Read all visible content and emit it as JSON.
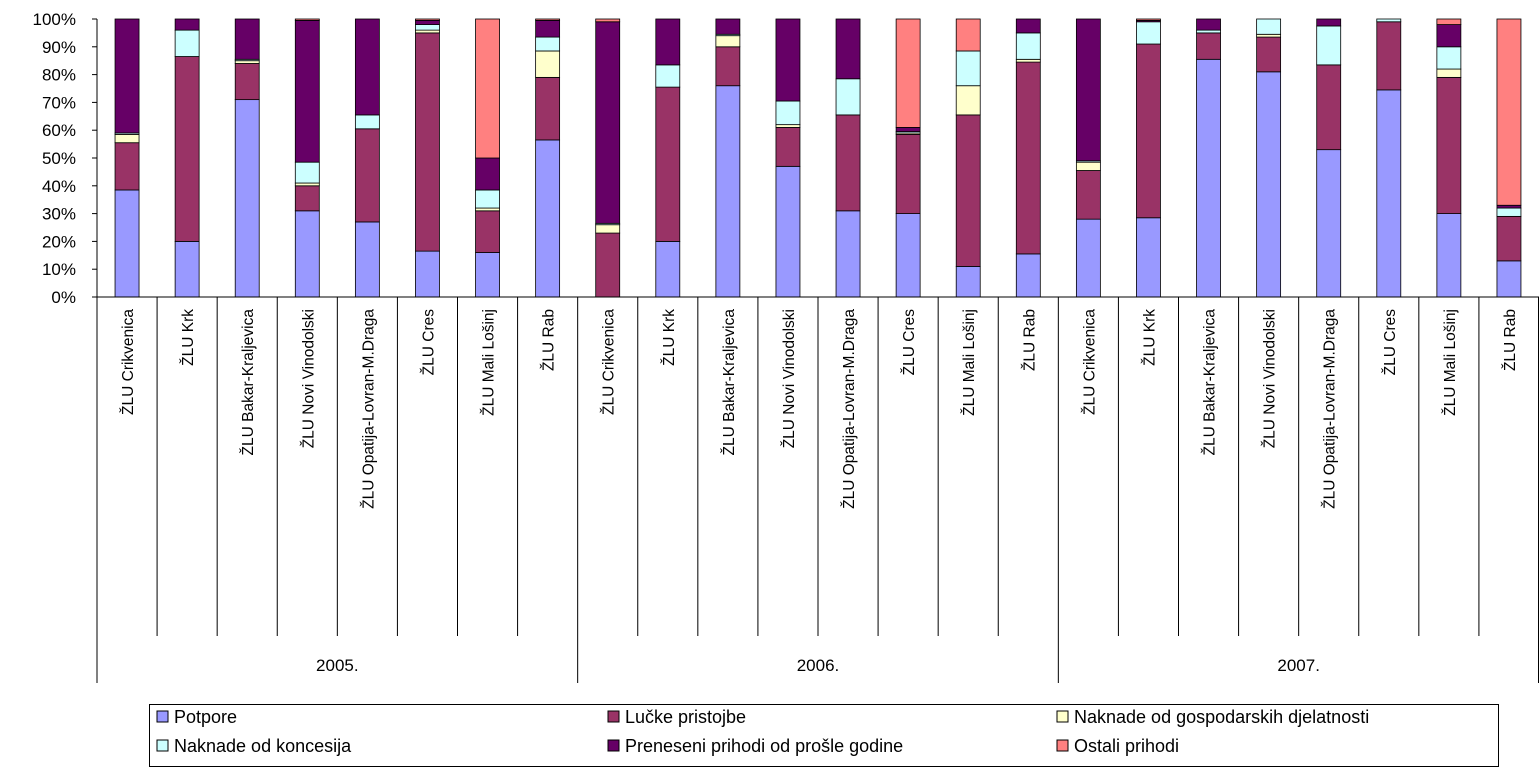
{
  "chart_data": {
    "type": "bar",
    "stacked": true,
    "percent": true,
    "ylim": [
      0,
      100
    ],
    "yticks": [
      "0%",
      "10%",
      "20%",
      "30%",
      "40%",
      "50%",
      "60%",
      "70%",
      "80%",
      "90%",
      "100%"
    ],
    "groups": [
      {
        "label": "2005.",
        "categories": [
          "ŽLU Crikvenica",
          "ŽLU Krk",
          "ŽLU Bakar-Kraljevica",
          "ŽLU Novi Vinodolski",
          "ŽLU Opatija-Lovran-M.Draga",
          "ŽLU Cres",
          "ŽLU Mali Lošinj",
          "ŽLU Rab"
        ]
      },
      {
        "label": "2006.",
        "categories": [
          "ŽLU Crikvenica",
          "ŽLU Krk",
          "ŽLU Bakar-Kraljevica",
          "ŽLU Novi Vinodolski",
          "ŽLU Opatija-Lovran-M.Draga",
          "ŽLU Cres",
          "ŽLU Mali Lošinj",
          "ŽLU Rab"
        ]
      },
      {
        "label": "2007.",
        "categories": [
          "ŽLU Crikvenica",
          "ŽLU Krk",
          "ŽLU Bakar-Kraljevica",
          "ŽLU Novi Vinodolski",
          "ŽLU Opatija-Lovran-M.Draga",
          "ŽLU Cres",
          "ŽLU Mali Lošinj",
          "ŽLU Rab"
        ]
      }
    ],
    "series": [
      {
        "name": "Potpore",
        "color": "#9999ff",
        "values": [
          38.5,
          20,
          71,
          31,
          27,
          16.5,
          16,
          56.5,
          0,
          20,
          76,
          47,
          31,
          30,
          11,
          15.5,
          28,
          28.5,
          85.5,
          81,
          53,
          74.5,
          30,
          13
        ]
      },
      {
        "name": "Lučke pristojbe",
        "color": "#993366",
        "values": [
          17,
          66.5,
          13,
          9,
          33.5,
          78.5,
          15,
          22.5,
          23,
          55.5,
          14,
          14,
          34.5,
          28.5,
          54.5,
          69,
          17.5,
          62.5,
          9.5,
          12.5,
          30.5,
          24.5,
          49,
          16
        ]
      },
      {
        "name": "Naknade od gospodarskih djelatnosti",
        "color": "#ffffcc",
        "values": [
          3,
          0,
          1,
          1,
          0,
          1,
          1,
          9.5,
          3,
          0,
          4,
          1,
          0,
          0.5,
          10.5,
          1,
          3,
          0,
          0,
          1,
          0,
          0,
          3,
          0
        ]
      },
      {
        "name": "Naknade od koncesija",
        "color": "#ccffff",
        "values": [
          0.5,
          9.5,
          0.5,
          7.5,
          5,
          2,
          6.5,
          5,
          0.5,
          8,
          0.5,
          8.5,
          13,
          0.5,
          12.5,
          9.5,
          0.5,
          8,
          1,
          5.5,
          14,
          1,
          8,
          3
        ]
      },
      {
        "name": "Preneseni prihodi od prošle godine",
        "color": "#660066",
        "values": [
          41,
          4,
          14.5,
          51,
          34.5,
          1.5,
          11.5,
          6,
          72.5,
          16.5,
          5.5,
          29.5,
          21.5,
          1.5,
          0,
          5,
          51,
          0.5,
          4,
          0,
          2.5,
          0,
          8,
          1
        ]
      },
      {
        "name": "Ostali prihodi",
        "color": "#ff8080",
        "values": [
          0,
          0,
          0,
          0.5,
          0,
          0.5,
          50,
          0.5,
          1,
          0,
          0,
          0,
          0,
          39,
          11.5,
          0,
          0,
          0.5,
          0,
          0,
          0,
          0,
          2,
          67
        ]
      }
    ]
  }
}
